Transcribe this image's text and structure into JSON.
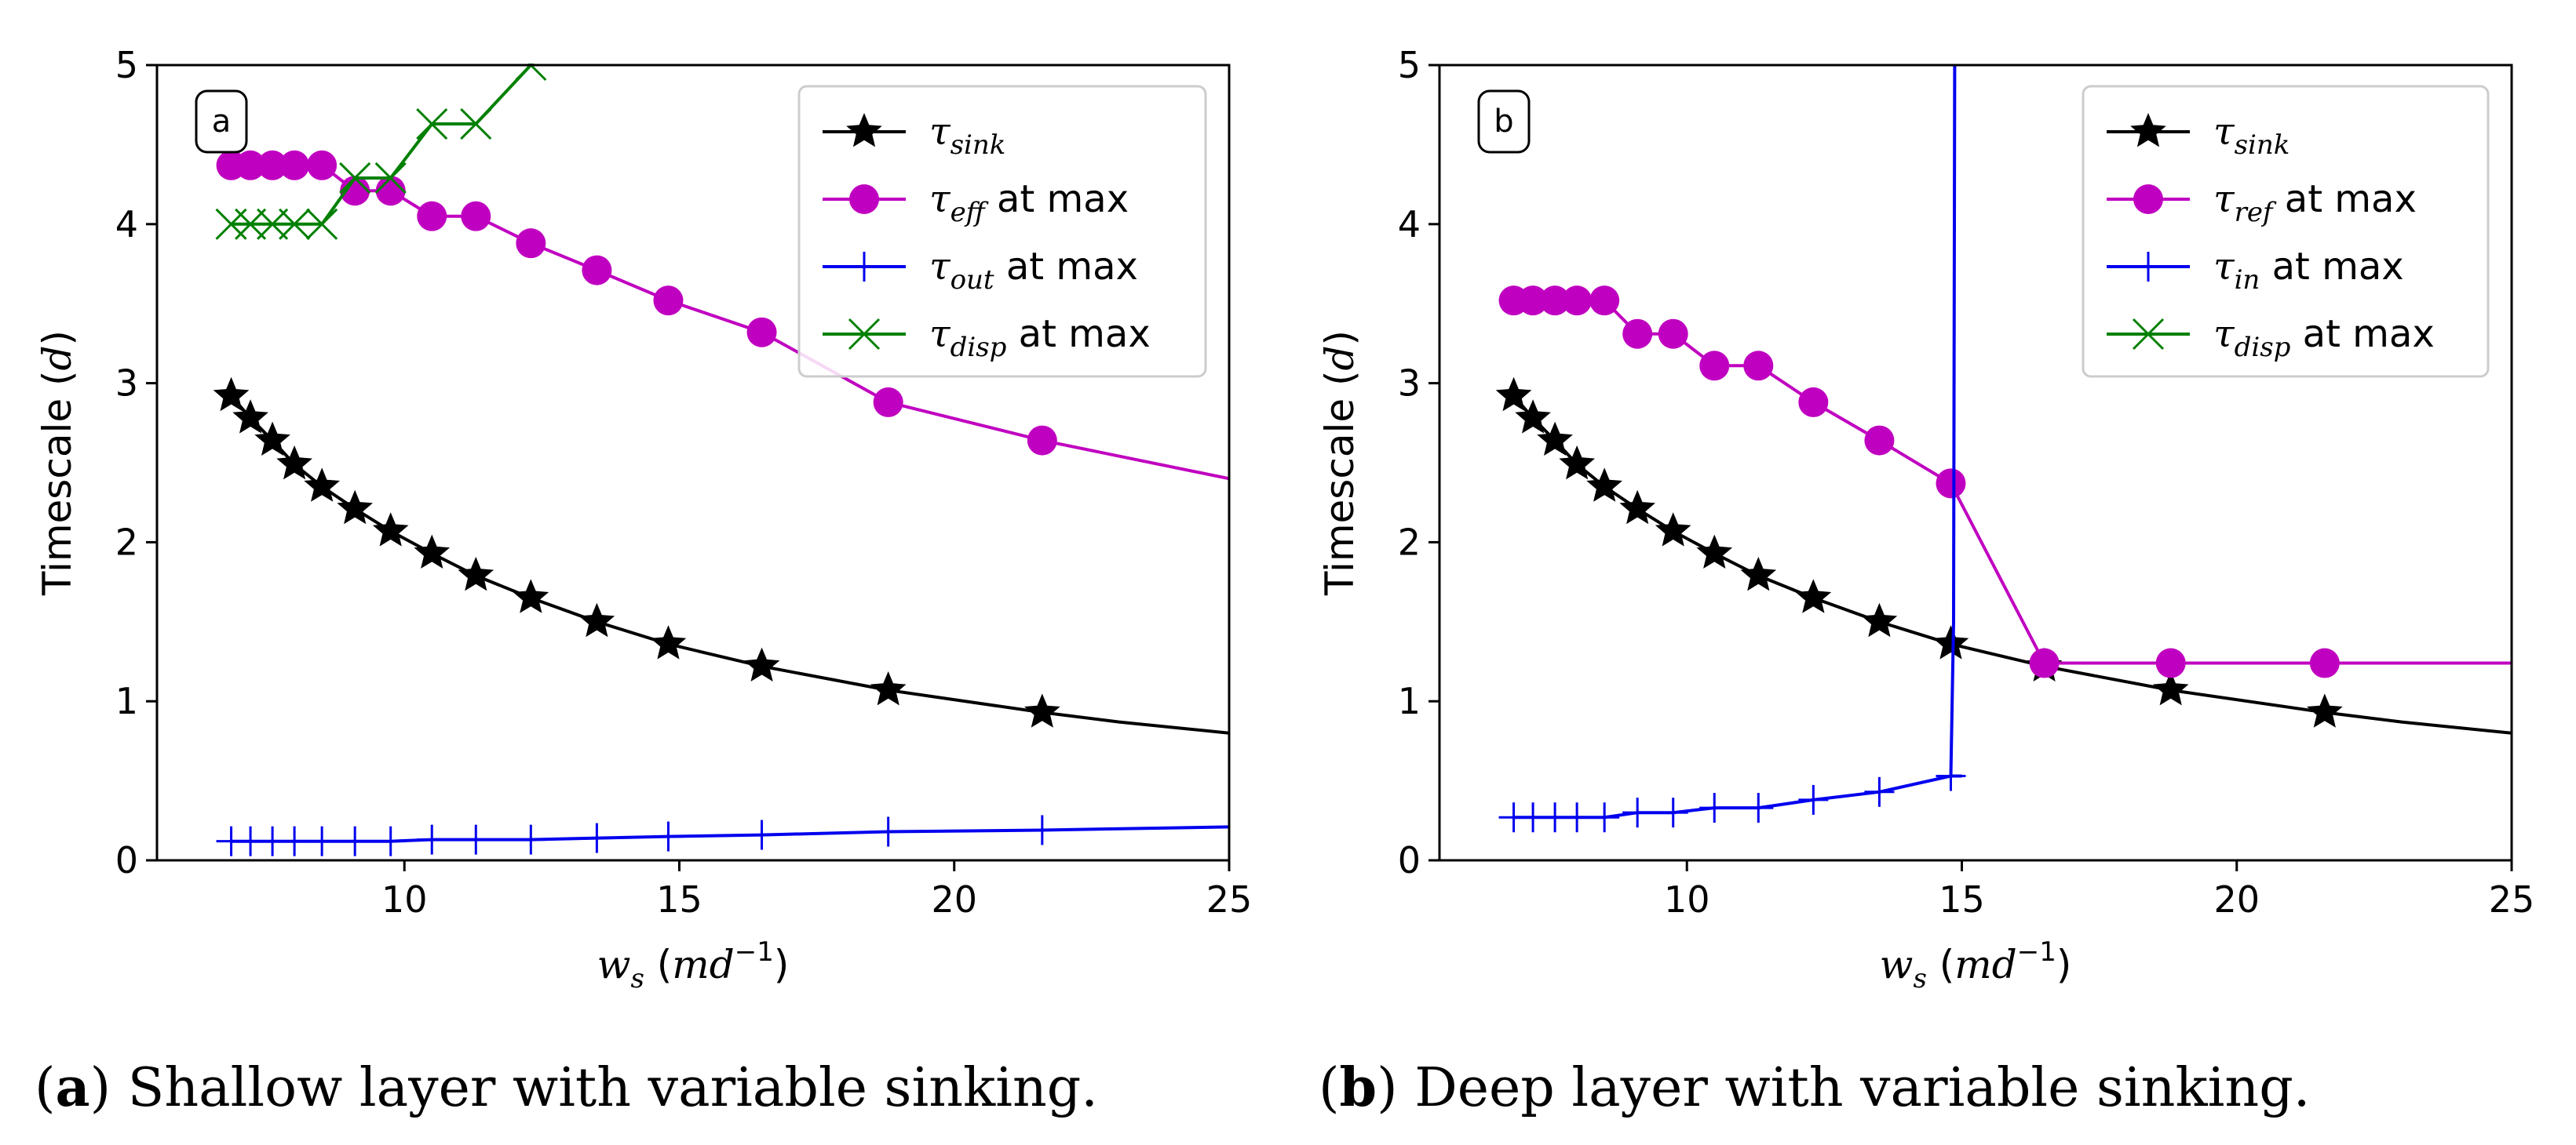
{
  "chart_data": [
    {
      "type": "line",
      "panel_tag": "a",
      "ylabel": "Timescale (d)",
      "xlabel": "w_s (md^-1)",
      "xlim": [
        5.5,
        25
      ],
      "ylim": [
        0,
        5
      ],
      "xticks": [
        10,
        15,
        20,
        25
      ],
      "yticks": [
        0,
        1,
        2,
        3,
        4,
        5
      ],
      "legend_position": "top-right",
      "caption": {
        "prefix": "(",
        "tag": "a",
        "text": ") Shallow layer with variable sinking."
      },
      "series": [
        {
          "name": "τ_sink",
          "label_base": "τ",
          "label_sub": "sink",
          "label_suffix": "",
          "color": "#000000",
          "marker": "star",
          "x": [
            6.85,
            7.2,
            7.6,
            8.0,
            8.5,
            9.1,
            9.75,
            10.5,
            11.3,
            12.3,
            13.5,
            14.8,
            16.5,
            18.8,
            21.6
          ],
          "y": [
            2.92,
            2.78,
            2.64,
            2.49,
            2.35,
            2.21,
            2.07,
            1.93,
            1.79,
            1.65,
            1.5,
            1.36,
            1.22,
            1.07,
            0.93
          ],
          "line_x": [
            6.85,
            7.2,
            7.6,
            8.0,
            8.5,
            9.1,
            9.75,
            10.5,
            11.3,
            12.3,
            13.5,
            14.8,
            16.5,
            18.8,
            21.6,
            23.0,
            25.0
          ],
          "line_y": [
            2.92,
            2.78,
            2.64,
            2.49,
            2.35,
            2.21,
            2.07,
            1.93,
            1.79,
            1.65,
            1.5,
            1.36,
            1.22,
            1.07,
            0.93,
            0.87,
            0.8
          ]
        },
        {
          "name": "τ_eff at max",
          "label_base": "τ",
          "label_sub": "eff",
          "label_suffix": "at max",
          "color": "#c000c0",
          "marker": "circle",
          "x": [
            6.85,
            7.2,
            7.6,
            8.0,
            8.5,
            9.1,
            9.75,
            10.5,
            11.3,
            12.3,
            13.5,
            14.8,
            16.5,
            18.8,
            21.6
          ],
          "y": [
            4.37,
            4.37,
            4.37,
            4.37,
            4.37,
            4.21,
            4.21,
            4.05,
            4.05,
            3.88,
            3.71,
            3.52,
            3.32,
            2.88,
            2.64
          ],
          "line_x": [
            6.85,
            7.2,
            7.6,
            8.0,
            8.5,
            9.1,
            9.75,
            10.5,
            11.3,
            12.3,
            13.5,
            14.8,
            16.5,
            18.8,
            21.6,
            25.0
          ],
          "line_y": [
            4.37,
            4.37,
            4.37,
            4.37,
            4.37,
            4.21,
            4.21,
            4.05,
            4.05,
            3.88,
            3.71,
            3.52,
            3.32,
            2.88,
            2.64,
            2.4
          ]
        },
        {
          "name": "τ_out at max",
          "label_base": "τ",
          "label_sub": "out",
          "label_suffix": "at max",
          "color": "#0000ee",
          "marker": "plus",
          "x": [
            6.85,
            7.2,
            7.6,
            8.0,
            8.5,
            9.1,
            9.75,
            10.5,
            11.3,
            12.3,
            13.5,
            14.8,
            16.5,
            18.8,
            21.6
          ],
          "y": [
            0.12,
            0.12,
            0.12,
            0.12,
            0.12,
            0.12,
            0.12,
            0.13,
            0.13,
            0.13,
            0.14,
            0.15,
            0.16,
            0.18,
            0.19
          ],
          "line_x": [
            6.85,
            7.2,
            7.6,
            8.0,
            8.5,
            9.1,
            9.75,
            10.5,
            11.3,
            12.3,
            13.5,
            14.8,
            16.5,
            18.8,
            21.6,
            25.0
          ],
          "line_y": [
            0.12,
            0.12,
            0.12,
            0.12,
            0.12,
            0.12,
            0.12,
            0.13,
            0.13,
            0.13,
            0.14,
            0.15,
            0.16,
            0.18,
            0.19,
            0.21
          ]
        },
        {
          "name": "τ_disp at max",
          "label_base": "τ",
          "label_sub": "disp",
          "label_suffix": "at max",
          "color": "#008000",
          "marker": "x",
          "x": [
            6.85,
            7.2,
            7.6,
            8.0,
            8.5,
            9.1,
            9.75,
            10.5,
            11.3,
            12.3
          ],
          "y": [
            4.0,
            4.0,
            4.0,
            4.0,
            4.0,
            4.29,
            4.29,
            4.63,
            4.63,
            5.0
          ],
          "line_x": [
            6.85,
            7.2,
            7.6,
            8.0,
            8.5,
            9.1,
            9.75,
            10.5,
            11.3,
            12.3
          ],
          "line_y": [
            4.0,
            4.0,
            4.0,
            4.0,
            4.0,
            4.29,
            4.29,
            4.63,
            4.63,
            5.0
          ]
        }
      ]
    },
    {
      "type": "line",
      "panel_tag": "b",
      "ylabel": "Timescale (d)",
      "xlabel": "w_s (md^-1)",
      "xlim": [
        5.5,
        25
      ],
      "ylim": [
        0,
        5
      ],
      "xticks": [
        10,
        15,
        20,
        25
      ],
      "yticks": [
        0,
        1,
        2,
        3,
        4,
        5
      ],
      "legend_position": "top-right",
      "caption": {
        "prefix": "(",
        "tag": "b",
        "text": ") Deep layer with variable sinking."
      },
      "series": [
        {
          "name": "τ_sink",
          "label_base": "τ",
          "label_sub": "sink",
          "label_suffix": "",
          "color": "#000000",
          "marker": "star",
          "x": [
            6.85,
            7.2,
            7.6,
            8.0,
            8.5,
            9.1,
            9.75,
            10.5,
            11.3,
            12.3,
            13.5,
            14.8,
            16.5,
            18.8,
            21.6
          ],
          "y": [
            2.92,
            2.78,
            2.64,
            2.49,
            2.35,
            2.21,
            2.07,
            1.93,
            1.79,
            1.65,
            1.5,
            1.36,
            1.22,
            1.07,
            0.93
          ],
          "line_x": [
            6.85,
            7.2,
            7.6,
            8.0,
            8.5,
            9.1,
            9.75,
            10.5,
            11.3,
            12.3,
            13.5,
            14.8,
            16.5,
            18.8,
            21.6,
            23.0,
            25.0
          ],
          "line_y": [
            2.92,
            2.78,
            2.64,
            2.49,
            2.35,
            2.21,
            2.07,
            1.93,
            1.79,
            1.65,
            1.5,
            1.36,
            1.22,
            1.07,
            0.93,
            0.87,
            0.8
          ]
        },
        {
          "name": "τ_ref at max",
          "label_base": "τ",
          "label_sub": "ref",
          "label_suffix": "at max",
          "color": "#c000c0",
          "marker": "circle",
          "x": [
            6.85,
            7.2,
            7.6,
            8.0,
            8.5,
            9.1,
            9.75,
            10.5,
            11.3,
            12.3,
            13.5,
            14.8,
            16.5,
            18.8,
            21.6
          ],
          "y": [
            3.52,
            3.52,
            3.52,
            3.52,
            3.52,
            3.31,
            3.31,
            3.11,
            3.11,
            2.88,
            2.64,
            2.37,
            1.24,
            1.24,
            1.24
          ],
          "line_x": [
            6.85,
            7.2,
            7.6,
            8.0,
            8.5,
            9.1,
            9.75,
            10.5,
            11.3,
            12.3,
            13.5,
            14.8,
            16.5,
            18.8,
            21.6,
            25.0
          ],
          "line_y": [
            3.52,
            3.52,
            3.52,
            3.52,
            3.52,
            3.31,
            3.31,
            3.11,
            3.11,
            2.88,
            2.64,
            2.37,
            1.24,
            1.24,
            1.24,
            1.24
          ]
        },
        {
          "name": "τ_in at max",
          "label_base": "τ",
          "label_sub": "in",
          "label_suffix": "at max",
          "color": "#0000ee",
          "marker": "plus",
          "x": [
            6.85,
            7.2,
            7.6,
            8.0,
            8.5,
            9.1,
            9.75,
            10.5,
            11.3,
            12.3,
            13.5,
            14.8
          ],
          "y": [
            0.27,
            0.27,
            0.27,
            0.27,
            0.27,
            0.3,
            0.3,
            0.33,
            0.33,
            0.38,
            0.43,
            0.53
          ],
          "line_x": [
            6.85,
            7.2,
            7.6,
            8.0,
            8.5,
            9.1,
            9.75,
            10.5,
            11.3,
            12.3,
            13.5,
            14.8,
            14.85,
            14.87
          ],
          "line_y": [
            0.27,
            0.27,
            0.27,
            0.27,
            0.27,
            0.3,
            0.3,
            0.33,
            0.33,
            0.38,
            0.43,
            0.53,
            1.5,
            5.0
          ],
          "extra_segment_x": [
            14.8,
            15.0
          ],
          "extra_segment_y": [
            0.53,
            0.53
          ]
        },
        {
          "name": "τ_disp at max",
          "label_base": "τ",
          "label_sub": "disp",
          "label_suffix": "at max",
          "color": "#008000",
          "marker": "x",
          "x": [],
          "y": [],
          "line_x": [],
          "line_y": []
        }
      ]
    }
  ]
}
